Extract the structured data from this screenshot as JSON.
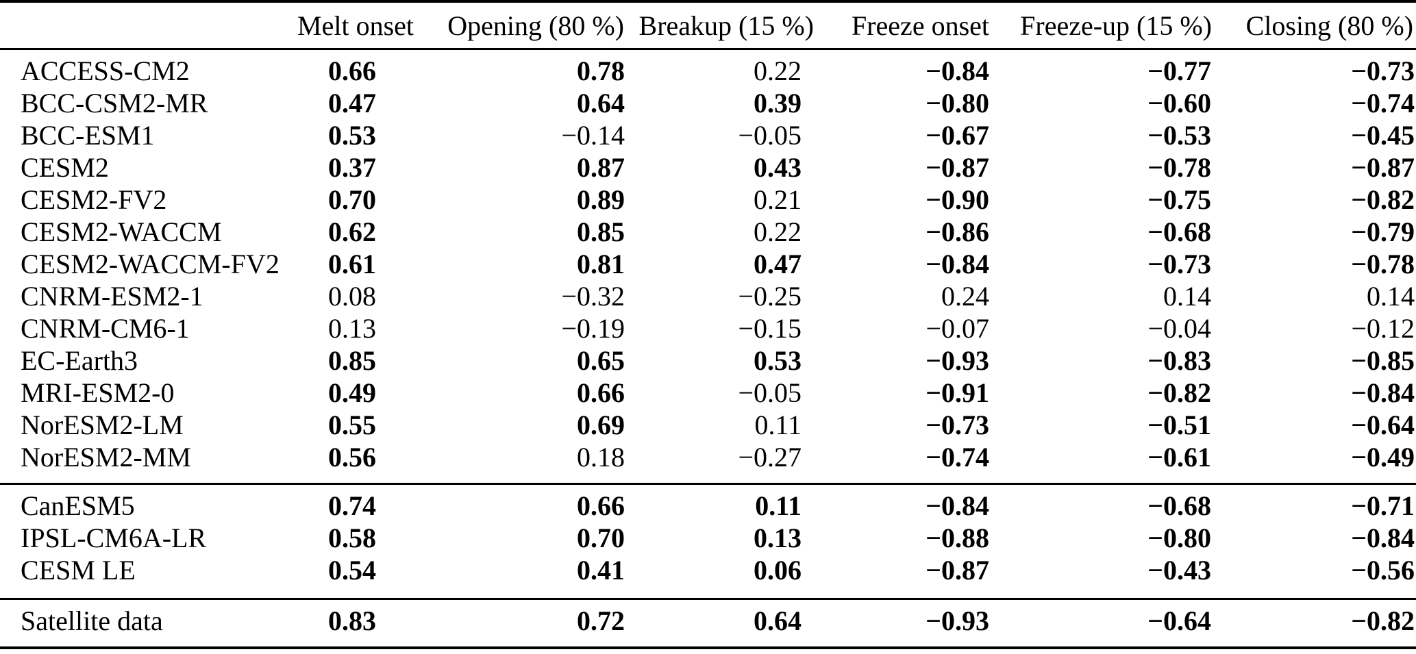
{
  "colors": {
    "text": "#000000",
    "background": "#ffffff",
    "rule": "#000000"
  },
  "table": {
    "columns": [
      "",
      "Melt onset",
      "Opening (80 %)",
      "Breakup (15 %)",
      "Freeze onset",
      "Freeze-up (15 %)",
      "Closing (80 %)"
    ],
    "groups": [
      {
        "name": "cmip6-models",
        "rows": [
          {
            "model": "ACCESS-CM2",
            "values": [
              {
                "value": "0.66",
                "bold": true
              },
              {
                "value": "0.78",
                "bold": true
              },
              {
                "value": "0.22",
                "bold": false
              },
              {
                "value": "−0.84",
                "bold": true
              },
              {
                "value": "−0.77",
                "bold": true
              },
              {
                "value": "−0.73",
                "bold": true
              }
            ]
          },
          {
            "model": "BCC-CSM2-MR",
            "values": [
              {
                "value": "0.47",
                "bold": true
              },
              {
                "value": "0.64",
                "bold": true
              },
              {
                "value": "0.39",
                "bold": true
              },
              {
                "value": "−0.80",
                "bold": true
              },
              {
                "value": "−0.60",
                "bold": true
              },
              {
                "value": "−0.74",
                "bold": true
              }
            ]
          },
          {
            "model": "BCC-ESM1",
            "values": [
              {
                "value": "0.53",
                "bold": true
              },
              {
                "value": "−0.14",
                "bold": false
              },
              {
                "value": "−0.05",
                "bold": false
              },
              {
                "value": "−0.67",
                "bold": true
              },
              {
                "value": "−0.53",
                "bold": true
              },
              {
                "value": "−0.45",
                "bold": true
              }
            ]
          },
          {
            "model": "CESM2",
            "values": [
              {
                "value": "0.37",
                "bold": true
              },
              {
                "value": "0.87",
                "bold": true
              },
              {
                "value": "0.43",
                "bold": true
              },
              {
                "value": "−0.87",
                "bold": true
              },
              {
                "value": "−0.78",
                "bold": true
              },
              {
                "value": "−0.87",
                "bold": true
              }
            ]
          },
          {
            "model": "CESM2-FV2",
            "values": [
              {
                "value": "0.70",
                "bold": true
              },
              {
                "value": "0.89",
                "bold": true
              },
              {
                "value": "0.21",
                "bold": false
              },
              {
                "value": "−0.90",
                "bold": true
              },
              {
                "value": "−0.75",
                "bold": true
              },
              {
                "value": "−0.82",
                "bold": true
              }
            ]
          },
          {
            "model": "CESM2-WACCM",
            "values": [
              {
                "value": "0.62",
                "bold": true
              },
              {
                "value": "0.85",
                "bold": true
              },
              {
                "value": "0.22",
                "bold": false
              },
              {
                "value": "−0.86",
                "bold": true
              },
              {
                "value": "−0.68",
                "bold": true
              },
              {
                "value": "−0.79",
                "bold": true
              }
            ]
          },
          {
            "model": "CESM2-WACCM-FV2",
            "values": [
              {
                "value": "0.61",
                "bold": true
              },
              {
                "value": "0.81",
                "bold": true
              },
              {
                "value": "0.47",
                "bold": true
              },
              {
                "value": "−0.84",
                "bold": true
              },
              {
                "value": "−0.73",
                "bold": true
              },
              {
                "value": "−0.78",
                "bold": true
              }
            ]
          },
          {
            "model": "CNRM-ESM2-1",
            "values": [
              {
                "value": "0.08",
                "bold": false
              },
              {
                "value": "−0.32",
                "bold": false
              },
              {
                "value": "−0.25",
                "bold": false
              },
              {
                "value": "0.24",
                "bold": false
              },
              {
                "value": "0.14",
                "bold": false
              },
              {
                "value": "0.14",
                "bold": false
              }
            ]
          },
          {
            "model": "CNRM-CM6-1",
            "values": [
              {
                "value": "0.13",
                "bold": false
              },
              {
                "value": "−0.19",
                "bold": false
              },
              {
                "value": "−0.15",
                "bold": false
              },
              {
                "value": "−0.07",
                "bold": false
              },
              {
                "value": "−0.04",
                "bold": false
              },
              {
                "value": "−0.12",
                "bold": false
              }
            ]
          },
          {
            "model": "EC-Earth3",
            "values": [
              {
                "value": "0.85",
                "bold": true
              },
              {
                "value": "0.65",
                "bold": true
              },
              {
                "value": "0.53",
                "bold": true
              },
              {
                "value": "−0.93",
                "bold": true
              },
              {
                "value": "−0.83",
                "bold": true
              },
              {
                "value": "−0.85",
                "bold": true
              }
            ]
          },
          {
            "model": "MRI-ESM2-0",
            "values": [
              {
                "value": "0.49",
                "bold": true
              },
              {
                "value": "0.66",
                "bold": true
              },
              {
                "value": "−0.05",
                "bold": false
              },
              {
                "value": "−0.91",
                "bold": true
              },
              {
                "value": "−0.82",
                "bold": true
              },
              {
                "value": "−0.84",
                "bold": true
              }
            ]
          },
          {
            "model": "NorESM2-LM",
            "values": [
              {
                "value": "0.55",
                "bold": true
              },
              {
                "value": "0.69",
                "bold": true
              },
              {
                "value": "0.11",
                "bold": false
              },
              {
                "value": "−0.73",
                "bold": true
              },
              {
                "value": "−0.51",
                "bold": true
              },
              {
                "value": "−0.64",
                "bold": true
              }
            ]
          },
          {
            "model": "NorESM2-MM",
            "values": [
              {
                "value": "0.56",
                "bold": true
              },
              {
                "value": "0.18",
                "bold": false
              },
              {
                "value": "−0.27",
                "bold": false
              },
              {
                "value": "−0.74",
                "bold": true
              },
              {
                "value": "−0.61",
                "bold": true
              },
              {
                "value": "−0.49",
                "bold": true
              }
            ]
          }
        ]
      },
      {
        "name": "large-ensembles",
        "rows": [
          {
            "model": "CanESM5",
            "values": [
              {
                "value": "0.74",
                "bold": true
              },
              {
                "value": "0.66",
                "bold": true
              },
              {
                "value": "0.11",
                "bold": true
              },
              {
                "value": "−0.84",
                "bold": true
              },
              {
                "value": "−0.68",
                "bold": true
              },
              {
                "value": "−0.71",
                "bold": true
              }
            ]
          },
          {
            "model": "IPSL-CM6A-LR",
            "values": [
              {
                "value": "0.58",
                "bold": true
              },
              {
                "value": "0.70",
                "bold": true
              },
              {
                "value": "0.13",
                "bold": true
              },
              {
                "value": "−0.88",
                "bold": true
              },
              {
                "value": "−0.80",
                "bold": true
              },
              {
                "value": "−0.84",
                "bold": true
              }
            ]
          },
          {
            "model": "CESM LE",
            "values": [
              {
                "value": "0.54",
                "bold": true
              },
              {
                "value": "0.41",
                "bold": true
              },
              {
                "value": "0.06",
                "bold": true
              },
              {
                "value": "−0.87",
                "bold": true
              },
              {
                "value": "−0.43",
                "bold": true
              },
              {
                "value": "−0.56",
                "bold": true
              }
            ]
          }
        ]
      },
      {
        "name": "satellite",
        "rows": [
          {
            "model": "Satellite data",
            "values": [
              {
                "value": "0.83",
                "bold": true
              },
              {
                "value": "0.72",
                "bold": true
              },
              {
                "value": "0.64",
                "bold": true
              },
              {
                "value": "−0.93",
                "bold": true
              },
              {
                "value": "−0.64",
                "bold": true
              },
              {
                "value": "−0.82",
                "bold": true
              }
            ]
          }
        ]
      }
    ]
  }
}
